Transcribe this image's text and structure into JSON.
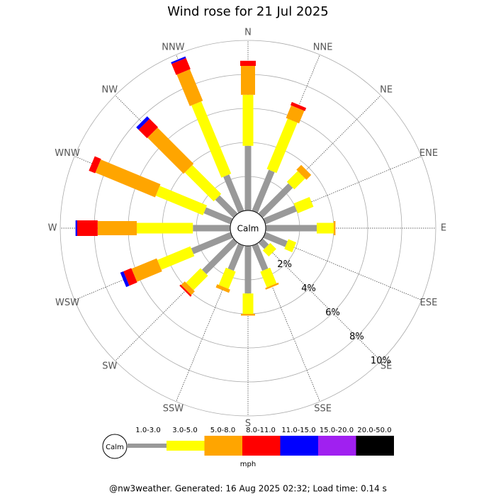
{
  "chart_data": {
    "type": "windrose",
    "title": "Wind rose for 21 Jul 2025",
    "categories": [
      "N",
      "NNE",
      "NE",
      "ENE",
      "E",
      "ESE",
      "SE",
      "SSE",
      "S",
      "SSW",
      "SW",
      "WSW",
      "W",
      "WNW",
      "NW",
      "NNW"
    ],
    "series": [
      {
        "name": "1.0-3.0",
        "color": "#999999",
        "values": [
          3.8,
          2.6,
          2.5,
          2.0,
          3.0,
          1.4,
          0.5,
          1.6,
          2.8,
          1.6,
          2.6,
          2.5,
          2.2,
          1.7,
          1.5,
          2.3
        ]
      },
      {
        "name": "3.0-5.0",
        "color": "#ffff00",
        "values": [
          3.0,
          3.2,
          0.9,
          1.0,
          1.0,
          0.5,
          0.5,
          1.0,
          1.2,
          1.1,
          1.2,
          2.1,
          3.3,
          3.0,
          2.4,
          4.6
        ]
      },
      {
        "name": "5.0-8.0",
        "color": "#ffa500",
        "values": [
          1.7,
          0.8,
          0.4,
          0,
          0.1,
          0,
          0,
          0.1,
          0.1,
          0.2,
          0.3,
          1.6,
          2.3,
          3.8,
          3.0,
          2.0
        ]
      },
      {
        "name": "8.0-11.0",
        "color": "#ff0000",
        "values": [
          0.3,
          0.2,
          0,
          0,
          0,
          0,
          0,
          0,
          0,
          0,
          0.1,
          0.5,
          1.2,
          0.4,
          0.7,
          0.7
        ]
      },
      {
        "name": "11.0-15.0",
        "color": "#0000ff",
        "values": [
          0,
          0,
          0,
          0,
          0,
          0,
          0,
          0,
          0,
          0,
          0,
          0.2,
          0.1,
          0,
          0.2,
          0.1
        ]
      },
      {
        "name": "15.0-20.0",
        "color": "#a020f0",
        "values": [
          0,
          0,
          0,
          0,
          0,
          0,
          0,
          0,
          0,
          0,
          0,
          0,
          0,
          0,
          0,
          0
        ]
      },
      {
        "name": "20.0-50.0",
        "color": "#000000",
        "values": [
          0,
          0,
          0,
          0,
          0,
          0,
          0,
          0,
          0,
          0,
          0,
          0,
          0,
          0,
          0,
          0
        ]
      }
    ],
    "rlim": [
      0,
      10
    ],
    "rticks": [
      {
        "value": 2,
        "label": "2%"
      },
      {
        "value": 4,
        "label": "4%"
      },
      {
        "value": 6,
        "label": "6%"
      },
      {
        "value": 8,
        "label": "8%"
      },
      {
        "value": 10,
        "label": "10%"
      }
    ],
    "calm_label": "Calm",
    "legend_unit": "mph",
    "footer": "@nw3weather. Generated: 16 Aug 2025 02:32; Load time: 0.14 s"
  }
}
